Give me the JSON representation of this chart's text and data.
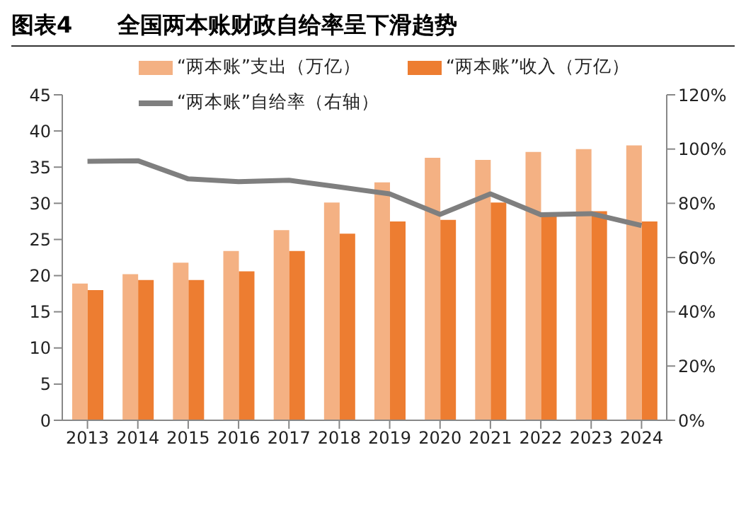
{
  "chart_data": {
    "type": "bar",
    "title": "图表4　　全国两本账财政自给率呈下滑趋势",
    "categories": [
      "2013",
      "2014",
      "2015",
      "2016",
      "2017",
      "2018",
      "2019",
      "2020",
      "2021",
      "2022",
      "2023",
      "2024"
    ],
    "series": [
      {
        "name": "“两本账”支出（万亿）",
        "color": "#f4b183",
        "values": [
          18.9,
          20.2,
          21.8,
          23.4,
          26.3,
          30.1,
          32.9,
          36.3,
          36.0,
          37.1,
          37.5,
          38.0
        ]
      },
      {
        "name": "“两本账”收入（万亿）",
        "color": "#ed7d31",
        "values": [
          18.0,
          19.4,
          19.4,
          20.6,
          23.4,
          25.8,
          27.5,
          27.7,
          30.1,
          28.3,
          28.9,
          27.5
        ]
      },
      {
        "name": "“两本账”自给率（右轴）",
        "color": "#7f7f7f",
        "type": "line",
        "axis": "y2",
        "values": [
          95.5,
          95.7,
          89.0,
          88.0,
          88.5,
          86.0,
          83.5,
          75.9,
          83.5,
          75.8,
          76.2,
          71.8
        ]
      }
    ],
    "ylim": [
      0,
      45
    ],
    "yticks": [
      0,
      5,
      10,
      15,
      20,
      25,
      30,
      35,
      40,
      45
    ],
    "y2lim": [
      0,
      120
    ],
    "y2ticks": [
      {
        "value": 0,
        "label": "0%"
      },
      {
        "value": 20,
        "label": "20%"
      },
      {
        "value": 40,
        "label": "40%"
      },
      {
        "value": 60,
        "label": "60%"
      },
      {
        "value": 80,
        "label": "80%"
      },
      {
        "value": 100,
        "label": "100%"
      },
      {
        "value": 120,
        "label": "120%"
      }
    ],
    "legend": "top",
    "grid": false,
    "marker": "none"
  }
}
